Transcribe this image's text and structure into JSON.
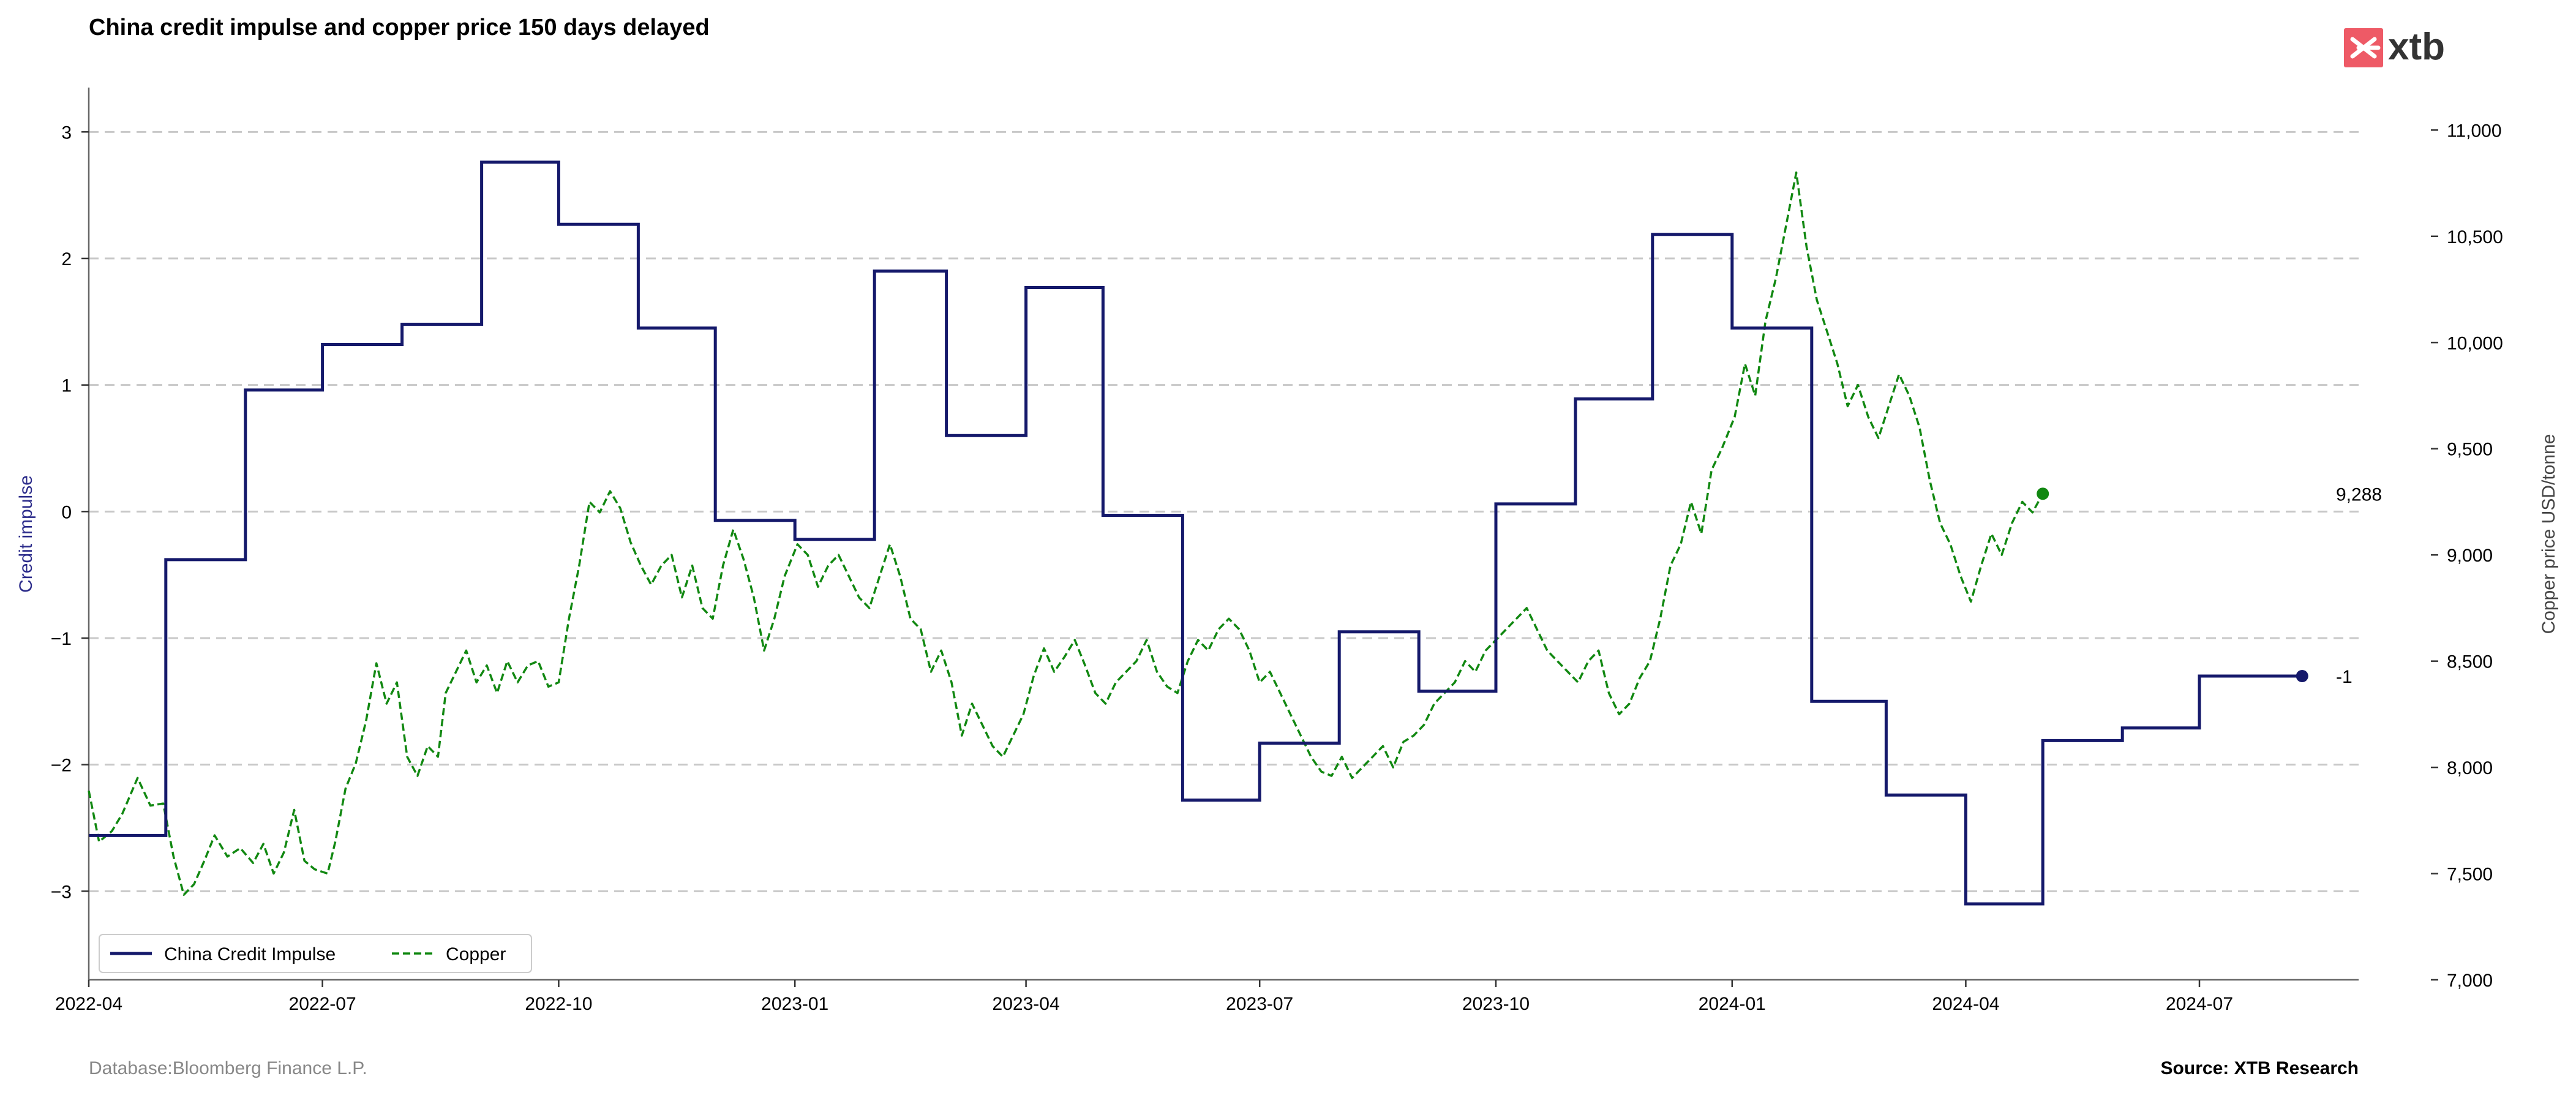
{
  "header": {
    "title": "China credit impulse and copper price 150 days delayed",
    "logo_text": "xtb"
  },
  "footer": {
    "database": "Database:Bloomberg Finance L.P.",
    "source": "Source: XTB Research"
  },
  "colors": {
    "impulse": "#15196b",
    "copper": "#118811",
    "grid": "#c8c8c8",
    "axis": "#666666",
    "ylabel_left": "#2b2b8a",
    "logo_bg": "#ee5a66",
    "footer_gray": "#888888"
  },
  "chart_data": {
    "type": "line",
    "title": "China credit impulse and copper price 150 days delayed",
    "xlabel": "",
    "ylabel_left": "Credit impulse",
    "ylabel_right": "Copper price USD/tonne",
    "xlim": [
      "2022-04-01",
      "2024-09-01"
    ],
    "ylim_left": [
      -3.7,
      3.35
    ],
    "ylim_right": [
      7000,
      11200
    ],
    "x_ticks": [
      "2022-04",
      "2022-07",
      "2022-10",
      "2023-01",
      "2023-04",
      "2023-07",
      "2023-10",
      "2024-01",
      "2024-04",
      "2024-07"
    ],
    "y_ticks_left": [
      "−3",
      "−2",
      "−1",
      "0",
      "1",
      "2",
      "3"
    ],
    "y_ticks_left_values": [
      -3,
      -2,
      -1,
      0,
      1,
      2,
      3
    ],
    "y_ticks_right": [
      "7,000",
      "7,500",
      "8,000",
      "8,500",
      "9,000",
      "9,500",
      "10,000",
      "10,500",
      "11,000"
    ],
    "y_ticks_right_values": [
      7000,
      7500,
      8000,
      8500,
      9000,
      9500,
      10000,
      10500,
      11000
    ],
    "grid": "horizontal dashed",
    "legend": {
      "position": "bottom-left",
      "columns": 2
    },
    "end_labels": {
      "copper": "9,288",
      "impulse": "-1"
    },
    "series": [
      {
        "name": "China Credit Impulse",
        "axis": "left",
        "style": "solid step",
        "points": [
          [
            "2022-04-01",
            -2.56
          ],
          [
            "2022-05-01",
            -0.38
          ],
          [
            "2022-06-01",
            0.96
          ],
          [
            "2022-07-01",
            1.32
          ],
          [
            "2022-08-01",
            1.48
          ],
          [
            "2022-09-01",
            2.76
          ],
          [
            "2022-10-01",
            2.27
          ],
          [
            "2022-11-01",
            1.45
          ],
          [
            "2022-12-01",
            -0.07
          ],
          [
            "2023-01-01",
            -0.22
          ],
          [
            "2023-02-01",
            1.9
          ],
          [
            "2023-03-01",
            0.6
          ],
          [
            "2023-04-01",
            1.77
          ],
          [
            "2023-05-01",
            -0.03
          ],
          [
            "2023-06-01",
            -2.28
          ],
          [
            "2023-07-01",
            -1.83
          ],
          [
            "2023-08-01",
            -0.95
          ],
          [
            "2023-09-01",
            -1.42
          ],
          [
            "2023-10-01",
            0.06
          ],
          [
            "2023-11-01",
            0.89
          ],
          [
            "2023-12-01",
            2.19
          ],
          [
            "2024-01-01",
            1.45
          ],
          [
            "2024-02-01",
            -1.5
          ],
          [
            "2024-03-01",
            -2.24
          ],
          [
            "2024-04-01",
            -3.1
          ],
          [
            "2024-05-01",
            -1.81
          ],
          [
            "2024-06-01",
            -1.71
          ],
          [
            "2024-07-01",
            -1.3
          ],
          [
            "2024-08-10",
            -1.3
          ]
        ]
      },
      {
        "name": "Copper",
        "axis": "right",
        "style": "dashed",
        "points": [
          [
            "2022-04-01",
            7890
          ],
          [
            "2022-04-05",
            7650
          ],
          [
            "2022-04-10",
            7700
          ],
          [
            "2022-04-14",
            7780
          ],
          [
            "2022-04-20",
            7950
          ],
          [
            "2022-04-25",
            7820
          ],
          [
            "2022-04-30",
            7830
          ],
          [
            "2022-05-04",
            7580
          ],
          [
            "2022-05-08",
            7400
          ],
          [
            "2022-05-12",
            7450
          ],
          [
            "2022-05-16",
            7560
          ],
          [
            "2022-05-20",
            7680
          ],
          [
            "2022-05-25",
            7580
          ],
          [
            "2022-05-30",
            7620
          ],
          [
            "2022-06-04",
            7550
          ],
          [
            "2022-06-08",
            7640
          ],
          [
            "2022-06-12",
            7500
          ],
          [
            "2022-06-16",
            7600
          ],
          [
            "2022-06-20",
            7800
          ],
          [
            "2022-06-24",
            7560
          ],
          [
            "2022-06-28",
            7520
          ],
          [
            "2022-07-03",
            7500
          ],
          [
            "2022-07-06",
            7650
          ],
          [
            "2022-07-10",
            7900
          ],
          [
            "2022-07-14",
            8020
          ],
          [
            "2022-07-18",
            8220
          ],
          [
            "2022-07-22",
            8490
          ],
          [
            "2022-07-26",
            8300
          ],
          [
            "2022-07-30",
            8400
          ],
          [
            "2022-08-03",
            8050
          ],
          [
            "2022-08-07",
            7960
          ],
          [
            "2022-08-11",
            8100
          ],
          [
            "2022-08-15",
            8050
          ],
          [
            "2022-08-18",
            8350
          ],
          [
            "2022-08-22",
            8450
          ],
          [
            "2022-08-26",
            8550
          ],
          [
            "2022-08-30",
            8400
          ],
          [
            "2022-09-03",
            8480
          ],
          [
            "2022-09-07",
            8350
          ],
          [
            "2022-09-11",
            8500
          ],
          [
            "2022-09-15",
            8400
          ],
          [
            "2022-09-19",
            8480
          ],
          [
            "2022-09-23",
            8500
          ],
          [
            "2022-09-27",
            8380
          ],
          [
            "2022-10-01",
            8400
          ],
          [
            "2022-10-05",
            8700
          ],
          [
            "2022-10-09",
            8950
          ],
          [
            "2022-10-13",
            9250
          ],
          [
            "2022-10-17",
            9200
          ],
          [
            "2022-10-21",
            9300
          ],
          [
            "2022-10-25",
            9220
          ],
          [
            "2022-10-29",
            9060
          ],
          [
            "2022-11-02",
            8950
          ],
          [
            "2022-11-06",
            8860
          ],
          [
            "2022-11-10",
            8950
          ],
          [
            "2022-11-14",
            9000
          ],
          [
            "2022-11-18",
            8800
          ],
          [
            "2022-11-22",
            8950
          ],
          [
            "2022-11-26",
            8750
          ],
          [
            "2022-11-30",
            8700
          ],
          [
            "2022-12-04",
            8950
          ],
          [
            "2022-12-08",
            9120
          ],
          [
            "2022-12-12",
            8980
          ],
          [
            "2022-12-16",
            8800
          ],
          [
            "2022-12-20",
            8550
          ],
          [
            "2022-12-24",
            8700
          ],
          [
            "2022-12-28",
            8900
          ],
          [
            "2023-01-02",
            9050
          ],
          [
            "2023-01-06",
            9000
          ],
          [
            "2023-01-10",
            8850
          ],
          [
            "2023-01-14",
            8950
          ],
          [
            "2023-01-18",
            9000
          ],
          [
            "2023-01-22",
            8900
          ],
          [
            "2023-01-26",
            8800
          ],
          [
            "2023-01-30",
            8750
          ],
          [
            "2023-02-03",
            8900
          ],
          [
            "2023-02-07",
            9050
          ],
          [
            "2023-02-11",
            8900
          ],
          [
            "2023-02-15",
            8700
          ],
          [
            "2023-02-19",
            8650
          ],
          [
            "2023-02-23",
            8450
          ],
          [
            "2023-02-27",
            8550
          ],
          [
            "2023-03-03",
            8400
          ],
          [
            "2023-03-07",
            8150
          ],
          [
            "2023-03-11",
            8300
          ],
          [
            "2023-03-15",
            8200
          ],
          [
            "2023-03-19",
            8100
          ],
          [
            "2023-03-23",
            8050
          ],
          [
            "2023-03-27",
            8150
          ],
          [
            "2023-03-31",
            8250
          ],
          [
            "2023-04-04",
            8430
          ],
          [
            "2023-04-08",
            8560
          ],
          [
            "2023-04-12",
            8450
          ],
          [
            "2023-04-16",
            8520
          ],
          [
            "2023-04-20",
            8600
          ],
          [
            "2023-04-24",
            8480
          ],
          [
            "2023-04-28",
            8350
          ],
          [
            "2023-05-02",
            8300
          ],
          [
            "2023-05-06",
            8400
          ],
          [
            "2023-05-10",
            8450
          ],
          [
            "2023-05-14",
            8500
          ],
          [
            "2023-05-18",
            8600
          ],
          [
            "2023-05-22",
            8450
          ],
          [
            "2023-05-26",
            8380
          ],
          [
            "2023-05-30",
            8350
          ],
          [
            "2023-06-03",
            8500
          ],
          [
            "2023-06-07",
            8600
          ],
          [
            "2023-06-11",
            8550
          ],
          [
            "2023-06-15",
            8650
          ],
          [
            "2023-06-19",
            8700
          ],
          [
            "2023-06-23",
            8650
          ],
          [
            "2023-06-27",
            8550
          ],
          [
            "2023-07-01",
            8400
          ],
          [
            "2023-07-05",
            8450
          ],
          [
            "2023-07-09",
            8350
          ],
          [
            "2023-07-13",
            8250
          ],
          [
            "2023-07-17",
            8150
          ],
          [
            "2023-07-21",
            8050
          ],
          [
            "2023-07-25",
            7980
          ],
          [
            "2023-07-29",
            7960
          ],
          [
            "2023-08-02",
            8050
          ],
          [
            "2023-08-06",
            7950
          ],
          [
            "2023-08-10",
            8000
          ],
          [
            "2023-08-14",
            8050
          ],
          [
            "2023-08-18",
            8100
          ],
          [
            "2023-08-22",
            8000
          ],
          [
            "2023-08-26",
            8120
          ],
          [
            "2023-08-30",
            8150
          ],
          [
            "2023-09-03",
            8200
          ],
          [
            "2023-09-07",
            8300
          ],
          [
            "2023-09-11",
            8350
          ],
          [
            "2023-09-15",
            8400
          ],
          [
            "2023-09-19",
            8500
          ],
          [
            "2023-09-23",
            8450
          ],
          [
            "2023-09-27",
            8550
          ],
          [
            "2023-10-01",
            8600
          ],
          [
            "2023-10-05",
            8650
          ],
          [
            "2023-10-09",
            8700
          ],
          [
            "2023-10-13",
            8750
          ],
          [
            "2023-10-17",
            8650
          ],
          [
            "2023-10-21",
            8550
          ],
          [
            "2023-10-25",
            8500
          ],
          [
            "2023-10-29",
            8450
          ],
          [
            "2023-11-02",
            8400
          ],
          [
            "2023-11-06",
            8500
          ],
          [
            "2023-11-10",
            8550
          ],
          [
            "2023-11-14",
            8350
          ],
          [
            "2023-11-18",
            8250
          ],
          [
            "2023-11-22",
            8300
          ],
          [
            "2023-11-26",
            8420
          ],
          [
            "2023-11-30",
            8500
          ],
          [
            "2023-12-04",
            8700
          ],
          [
            "2023-12-08",
            8950
          ],
          [
            "2023-12-12",
            9050
          ],
          [
            "2023-12-16",
            9250
          ],
          [
            "2023-12-20",
            9100
          ],
          [
            "2023-12-24",
            9400
          ],
          [
            "2023-12-28",
            9500
          ],
          [
            "2024-01-02",
            9650
          ],
          [
            "2024-01-06",
            9900
          ],
          [
            "2024-01-10",
            9750
          ],
          [
            "2024-01-14",
            10100
          ],
          [
            "2024-01-18",
            10300
          ],
          [
            "2024-01-22",
            10550
          ],
          [
            "2024-01-26",
            10800
          ],
          [
            "2024-01-30",
            10450
          ],
          [
            "2024-02-03",
            10200
          ],
          [
            "2024-02-07",
            10050
          ],
          [
            "2024-02-11",
            9900
          ],
          [
            "2024-02-15",
            9700
          ],
          [
            "2024-02-19",
            9800
          ],
          [
            "2024-02-23",
            9650
          ],
          [
            "2024-02-27",
            9550
          ],
          [
            "2024-03-02",
            9700
          ],
          [
            "2024-03-06",
            9850
          ],
          [
            "2024-03-10",
            9750
          ],
          [
            "2024-03-14",
            9600
          ],
          [
            "2024-03-18",
            9350
          ],
          [
            "2024-03-22",
            9150
          ],
          [
            "2024-03-26",
            9050
          ],
          [
            "2024-03-30",
            8900
          ],
          [
            "2024-04-03",
            8780
          ],
          [
            "2024-04-07",
            8950
          ],
          [
            "2024-04-11",
            9100
          ],
          [
            "2024-04-15",
            9000
          ],
          [
            "2024-04-19",
            9150
          ],
          [
            "2024-04-23",
            9250
          ],
          [
            "2024-04-27",
            9200
          ],
          [
            "2024-05-01",
            9288
          ]
        ]
      }
    ]
  }
}
